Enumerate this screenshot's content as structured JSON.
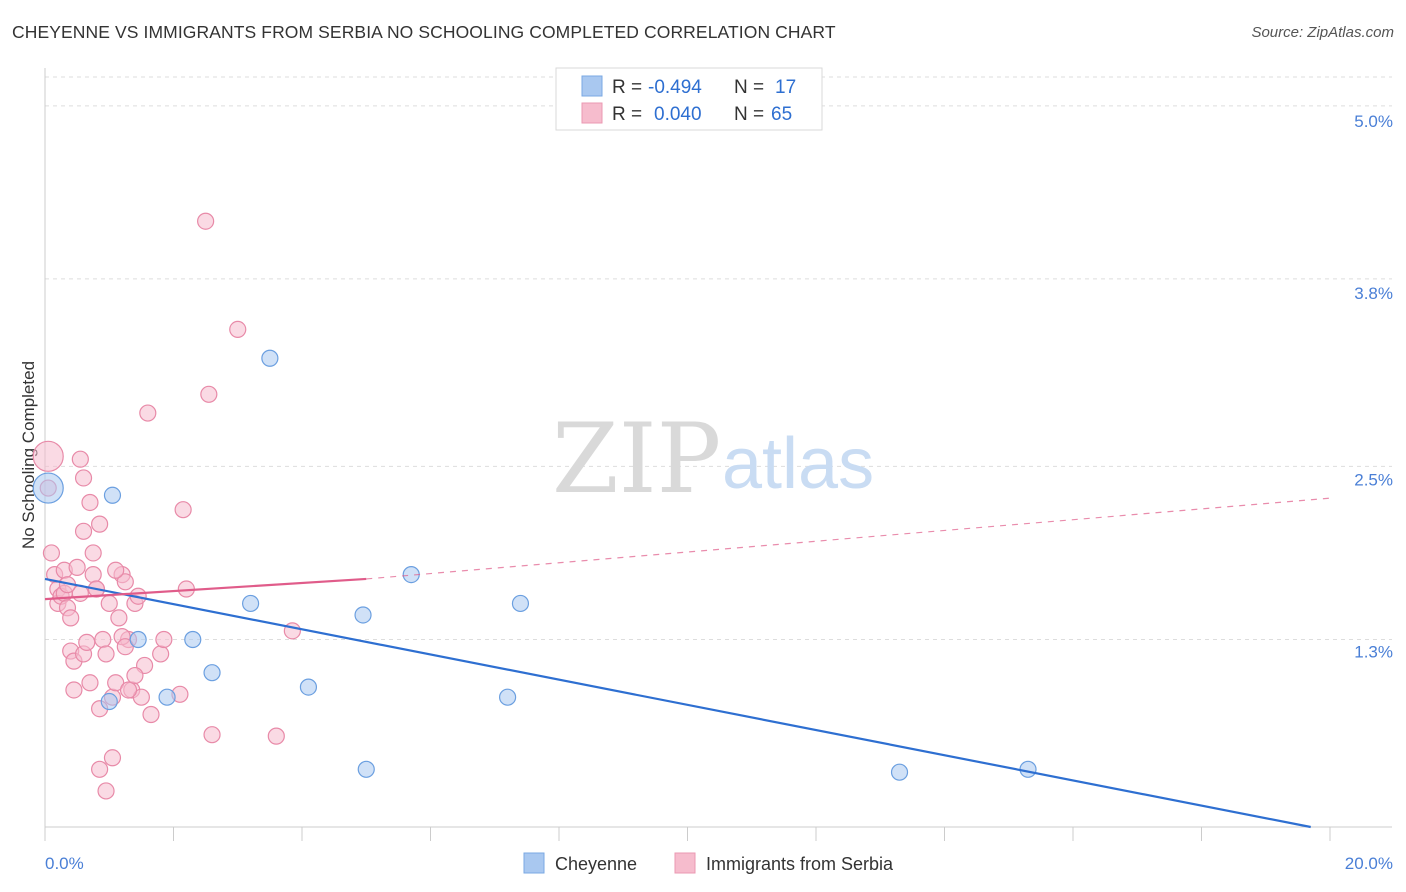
{
  "header": {
    "title": "CHEYENNE VS IMMIGRANTS FROM SERBIA NO SCHOOLING COMPLETED CORRELATION CHART",
    "source": "Source: ZipAtlas.com"
  },
  "watermark": {
    "zip": "ZIP",
    "atlas": "atlas"
  },
  "legend_top": {
    "rows": [
      {
        "r_label": "R =",
        "r_value": "-0.494",
        "n_label": "N =",
        "n_value": "17",
        "color": "#a9c8f0"
      },
      {
        "r_label": "R =",
        "r_value": "0.040",
        "n_label": "N =",
        "n_value": "65",
        "color": "#f6bccd"
      }
    ]
  },
  "legend_bottom": {
    "items": [
      {
        "label": "Cheyenne",
        "color": "#a9c8f0"
      },
      {
        "label": "Immigrants from Serbia",
        "color": "#f6bccd"
      }
    ]
  },
  "chart_data": {
    "type": "scatter",
    "title": "CHEYENNE VS IMMIGRANTS FROM SERBIA NO SCHOOLING COMPLETED CORRELATION CHART",
    "xlabel": "",
    "ylabel": "No Schooling Completed",
    "xlim": [
      0,
      20
    ],
    "ylim": [
      0,
      5.2
    ],
    "x_tick_labels": [
      "0.0%",
      "20.0%"
    ],
    "y_ticks": [
      1.3,
      2.5,
      3.8,
      5.0
    ],
    "y_tick_labels": [
      "1.3%",
      "2.5%",
      "3.8%",
      "5.0%"
    ],
    "grid": true,
    "colors": {
      "cheyenne": "#2e6fd1",
      "serbia": "#e05c8a",
      "cheyenne_fill": "#a9c8f0",
      "serbia_fill": "#f6bccd"
    },
    "series": [
      {
        "name": "Cheyenne",
        "points": [
          [
            0.05,
            2.35
          ],
          [
            1.05,
            2.3
          ],
          [
            1.45,
            1.3
          ],
          [
            1.9,
            0.9
          ],
          [
            2.3,
            1.3
          ],
          [
            2.6,
            1.07
          ],
          [
            3.2,
            1.55
          ],
          [
            3.5,
            3.25
          ],
          [
            4.1,
            0.97
          ],
          [
            4.95,
            1.47
          ],
          [
            5.7,
            1.75
          ],
          [
            5.0,
            0.4
          ],
          [
            7.2,
            0.9
          ],
          [
            7.4,
            1.55
          ],
          [
            13.3,
            0.38
          ],
          [
            15.3,
            0.4
          ],
          [
            1.0,
            0.87
          ]
        ],
        "trend": {
          "x0": 0,
          "y0": 1.72,
          "x1": 19.7,
          "y1": 0.0,
          "style": "solid"
        }
      },
      {
        "name": "Immigrants from Serbia",
        "points": [
          [
            0.05,
            2.57
          ],
          [
            0.05,
            2.35
          ],
          [
            0.1,
            1.9
          ],
          [
            0.15,
            1.75
          ],
          [
            0.2,
            1.65
          ],
          [
            0.2,
            1.55
          ],
          [
            0.25,
            1.6
          ],
          [
            0.3,
            1.78
          ],
          [
            0.3,
            1.62
          ],
          [
            0.35,
            1.52
          ],
          [
            0.4,
            1.45
          ],
          [
            0.4,
            1.22
          ],
          [
            0.45,
            1.15
          ],
          [
            0.45,
            0.95
          ],
          [
            0.5,
            1.8
          ],
          [
            0.55,
            1.62
          ],
          [
            0.6,
            2.05
          ],
          [
            0.6,
            1.2
          ],
          [
            0.7,
            2.25
          ],
          [
            0.75,
            1.75
          ],
          [
            0.8,
            1.65
          ],
          [
            0.85,
            2.1
          ],
          [
            0.9,
            1.3
          ],
          [
            0.95,
            1.2
          ],
          [
            1.0,
            1.55
          ],
          [
            1.05,
            0.9
          ],
          [
            1.1,
            1.0
          ],
          [
            1.15,
            1.45
          ],
          [
            1.2,
            1.75
          ],
          [
            1.25,
            1.7
          ],
          [
            1.3,
            1.3
          ],
          [
            1.35,
            0.95
          ],
          [
            1.4,
            1.55
          ],
          [
            1.45,
            1.6
          ],
          [
            1.5,
            0.9
          ],
          [
            1.55,
            1.12
          ],
          [
            1.6,
            2.87
          ],
          [
            1.65,
            0.78
          ],
          [
            1.8,
            1.2
          ],
          [
            1.85,
            1.3
          ],
          [
            2.1,
            0.92
          ],
          [
            2.15,
            2.2
          ],
          [
            2.2,
            1.65
          ],
          [
            2.5,
            4.2
          ],
          [
            2.55,
            3.0
          ],
          [
            2.6,
            0.64
          ],
          [
            3.0,
            3.45
          ],
          [
            3.6,
            0.63
          ],
          [
            3.85,
            1.36
          ],
          [
            0.85,
            0.82
          ],
          [
            0.85,
            0.4
          ],
          [
            0.95,
            0.25
          ],
          [
            1.05,
            0.48
          ],
          [
            1.3,
            0.95
          ],
          [
            0.55,
            2.55
          ],
          [
            0.6,
            2.42
          ],
          [
            0.65,
            1.28
          ],
          [
            0.7,
            1.0
          ],
          [
            0.75,
            1.9
          ],
          [
            0.8,
            1.65
          ],
          [
            1.1,
            1.78
          ],
          [
            1.2,
            1.32
          ],
          [
            1.25,
            1.25
          ],
          [
            1.4,
            1.05
          ],
          [
            0.35,
            1.68
          ]
        ],
        "trend": {
          "x0": 0,
          "y0": 1.58,
          "x1": 5.0,
          "y1": 1.72,
          "style": "solid",
          "ext_x1": 20.0,
          "ext_y1": 2.28,
          "ext_style": "dashed"
        }
      }
    ]
  }
}
